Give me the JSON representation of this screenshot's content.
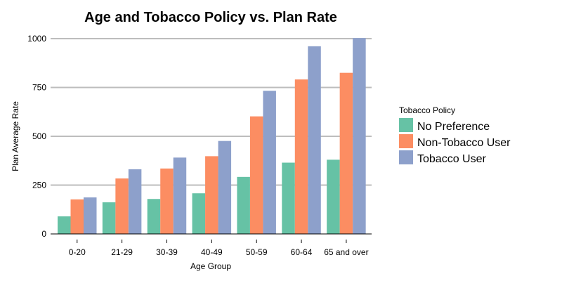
{
  "chart_data": {
    "type": "bar",
    "title": "Age and Tobacco Policy vs. Plan Rate",
    "xlabel": "Age Group",
    "ylabel": "Plan Average Rate",
    "categories": [
      "0-20",
      "21-29",
      "30-39",
      "40-49",
      "50-59",
      "60-64",
      "65 and over"
    ],
    "series": [
      {
        "name": "No Preference",
        "color": "#66c2a5",
        "values": [
          90,
          162,
          179,
          208,
          292,
          365,
          380
        ]
      },
      {
        "name": "Non-Tobacco User",
        "color": "#fc8d62",
        "values": [
          177,
          284,
          335,
          398,
          602,
          791,
          825
        ]
      },
      {
        "name": "Tobacco User",
        "color": "#8da0cb",
        "values": [
          187,
          331,
          391,
          476,
          733,
          961,
          1003
        ]
      }
    ],
    "ylim": [
      0,
      1000
    ],
    "yticks": [
      0,
      250,
      500,
      750,
      1000
    ],
    "grid": true,
    "legend": {
      "title": "Tobacco Policy",
      "placement": "right"
    }
  }
}
